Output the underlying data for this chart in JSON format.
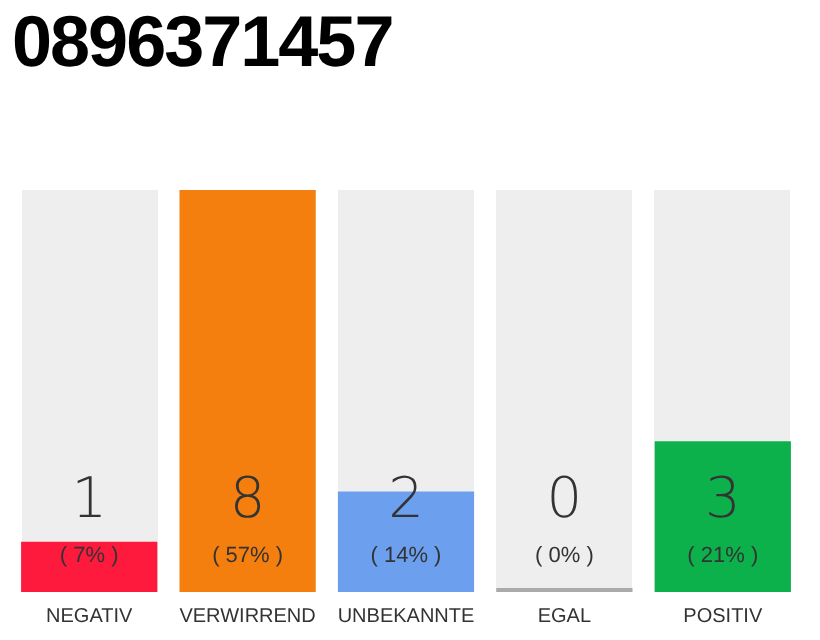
{
  "chart_data": {
    "type": "bar",
    "title": "0896371457",
    "categories": [
      "NEGATIV",
      "VERWIRREND",
      "UNBEKANNTE",
      "EGAL",
      "POSITIV"
    ],
    "values": [
      1,
      8,
      2,
      0,
      3
    ],
    "colors": [
      "#fe1a3c",
      "#f47f0f",
      "#6ca0ef",
      "#aaaaaa",
      "#0db14b"
    ],
    "tick_labels": "x",
    "data_labels": true,
    "grid": false,
    "legend": false,
    "annotations": [
      "( 7% )",
      "( 57% )",
      "( 14% )",
      "( 0% )",
      "( 21% )"
    ]
  }
}
